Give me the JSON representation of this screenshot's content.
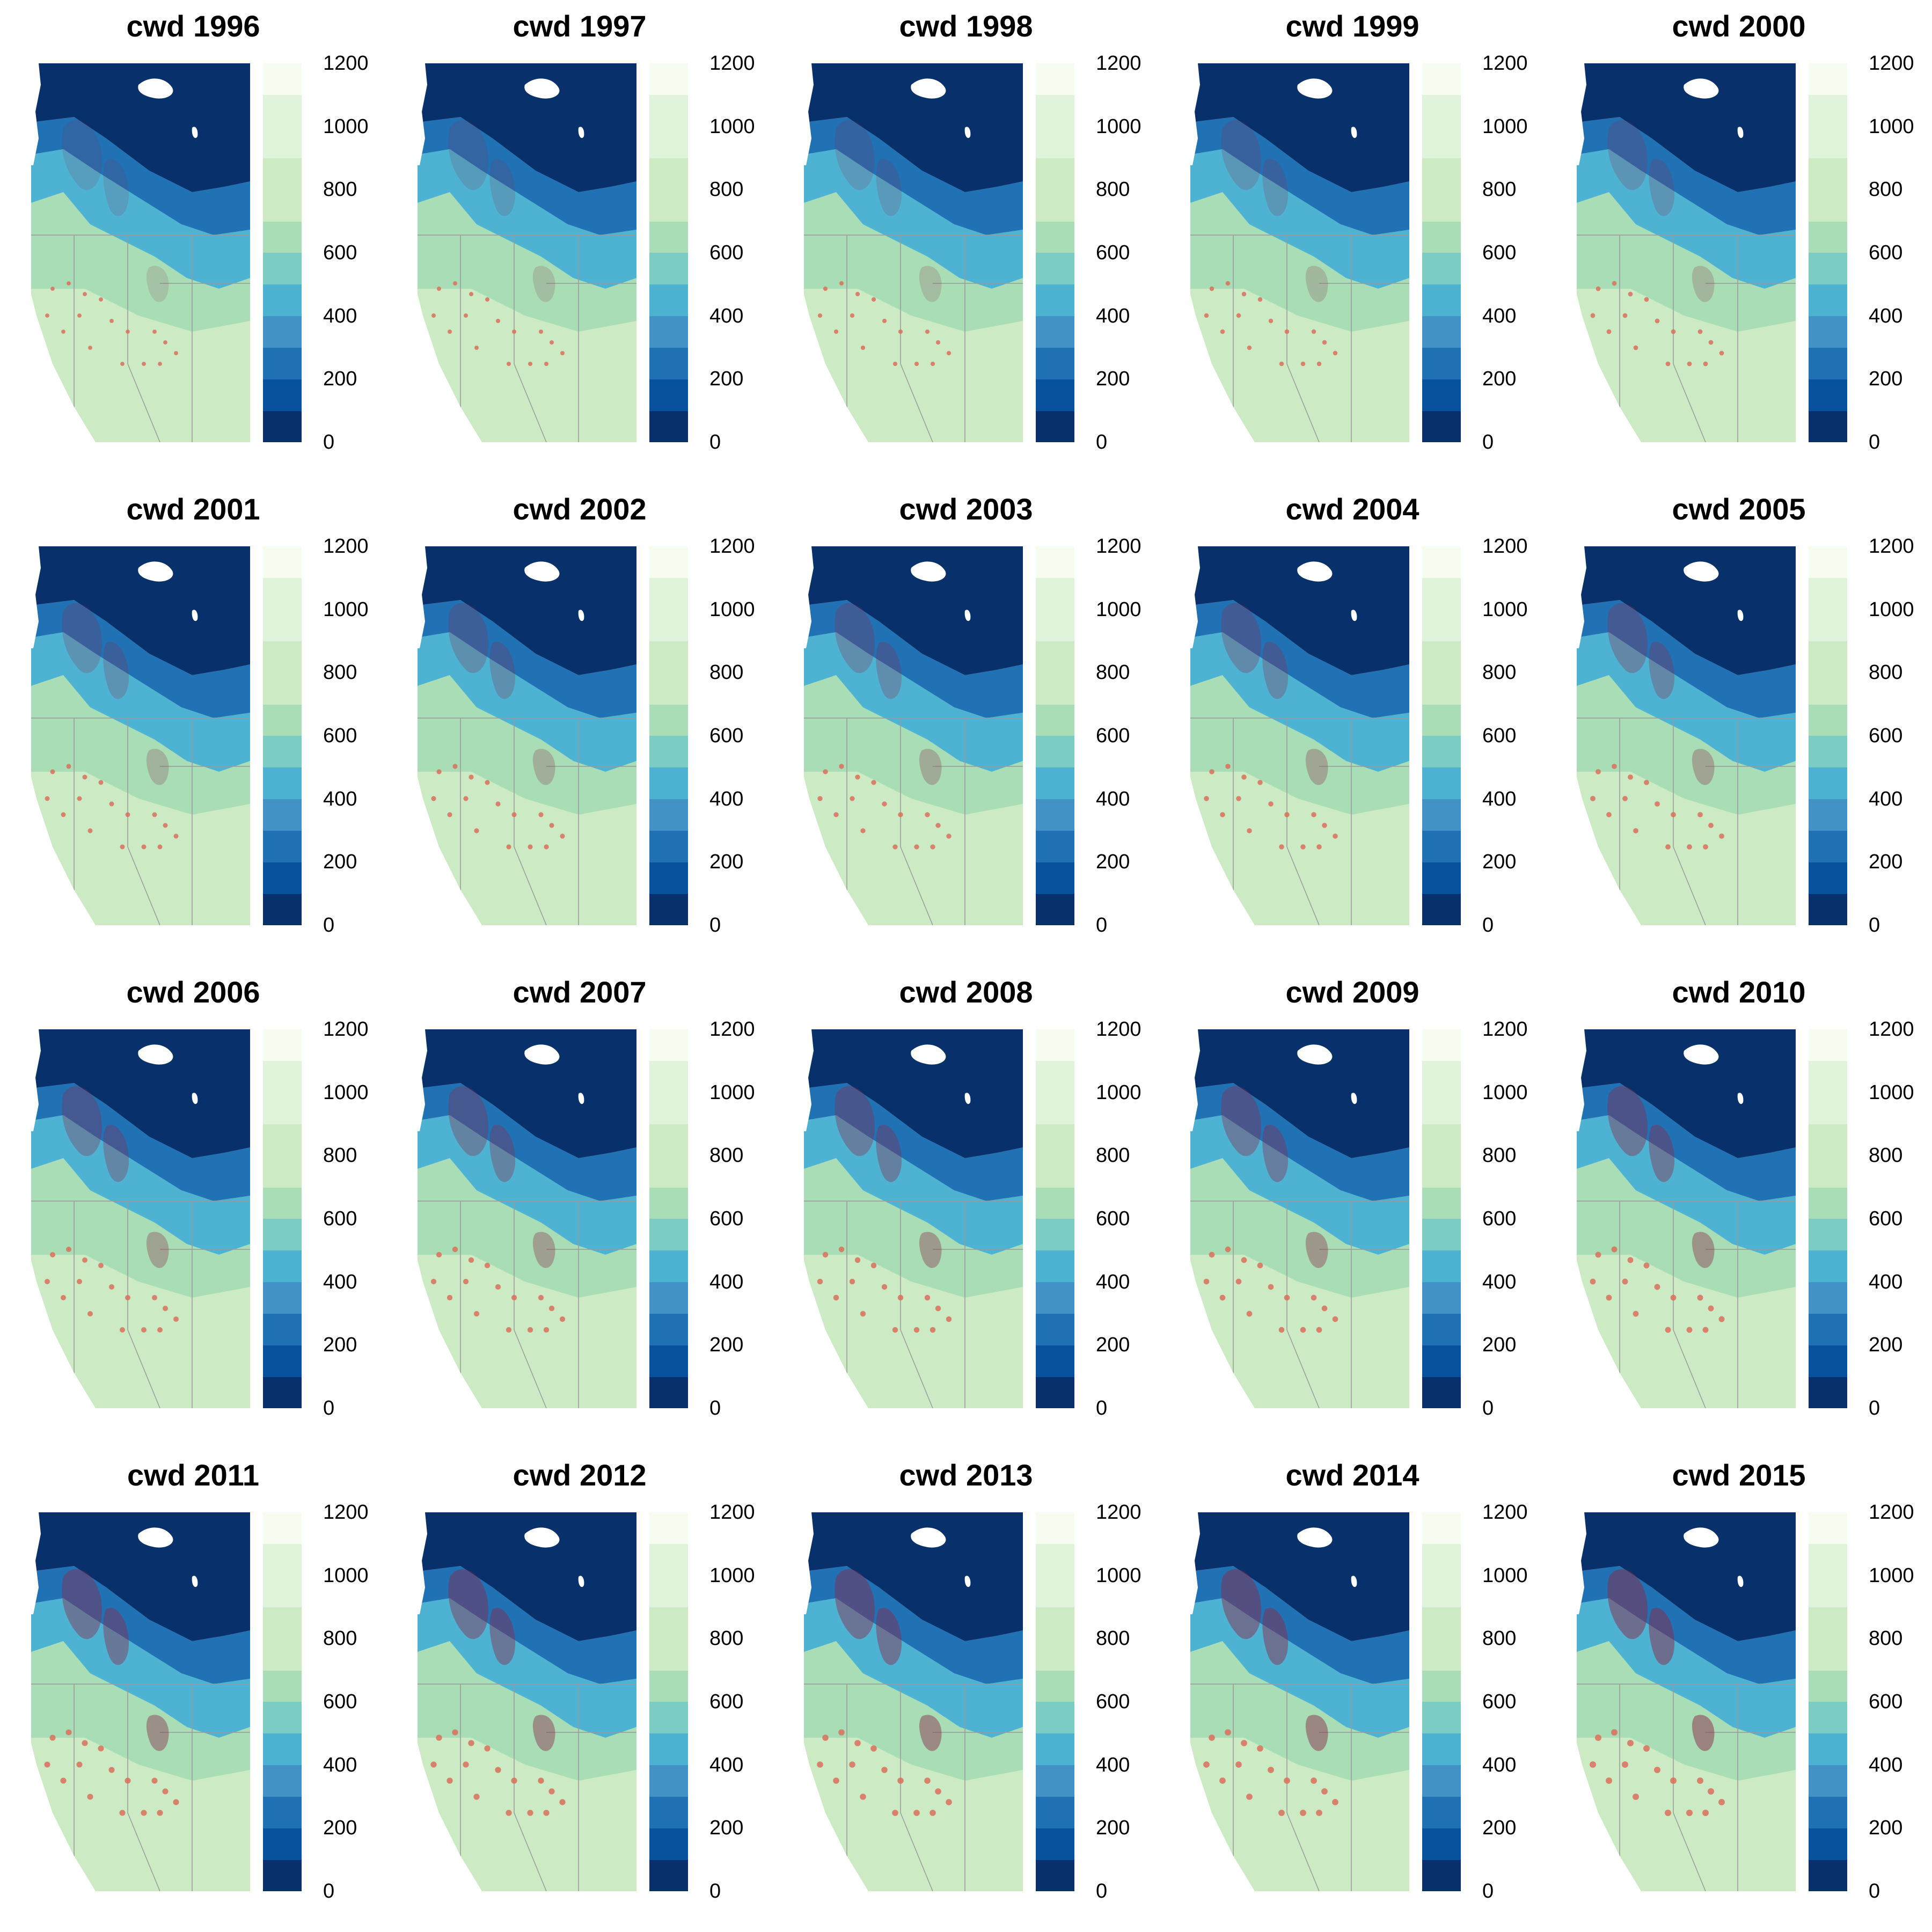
{
  "panels": [
    {
      "title": "cwd 1996",
      "year": 1996
    },
    {
      "title": "cwd 1997",
      "year": 1997
    },
    {
      "title": "cwd 1998",
      "year": 1998
    },
    {
      "title": "cwd 1999",
      "year": 1999
    },
    {
      "title": "cwd 2000",
      "year": 2000
    },
    {
      "title": "cwd 2001",
      "year": 2001
    },
    {
      "title": "cwd 2002",
      "year": 2002
    },
    {
      "title": "cwd 2003",
      "year": 2003
    },
    {
      "title": "cwd 2004",
      "year": 2004
    },
    {
      "title": "cwd 2005",
      "year": 2005
    },
    {
      "title": "cwd 2006",
      "year": 2006
    },
    {
      "title": "cwd 2007",
      "year": 2007
    },
    {
      "title": "cwd 2008",
      "year": 2008
    },
    {
      "title": "cwd 2009",
      "year": 2009
    },
    {
      "title": "cwd 2010",
      "year": 2010
    },
    {
      "title": "cwd 2011",
      "year": 2011
    },
    {
      "title": "cwd 2012",
      "year": 2012
    },
    {
      "title": "cwd 2013",
      "year": 2013
    },
    {
      "title": "cwd 2014",
      "year": 2014
    },
    {
      "title": "cwd 2015",
      "year": 2015
    }
  ],
  "colorbar": {
    "ticks": [
      "0",
      "200",
      "400",
      "600",
      "800",
      "1000",
      "1200"
    ],
    "range": [
      0,
      1200
    ],
    "colors": [
      "#08306b",
      "#08519c",
      "#2171b5",
      "#4292c6",
      "#4eb3d3",
      "#7bccc4",
      "#a8ddb5",
      "#ccebc5",
      "#ccebc5",
      "#e0f3db",
      "#e0f3db",
      "#f7fcf0"
    ]
  },
  "overlay_color": "#8b2a4a",
  "overlay_south_color": "#d9705a",
  "boundary_color": "#9a9a9a",
  "water_color": "#ffffff"
}
